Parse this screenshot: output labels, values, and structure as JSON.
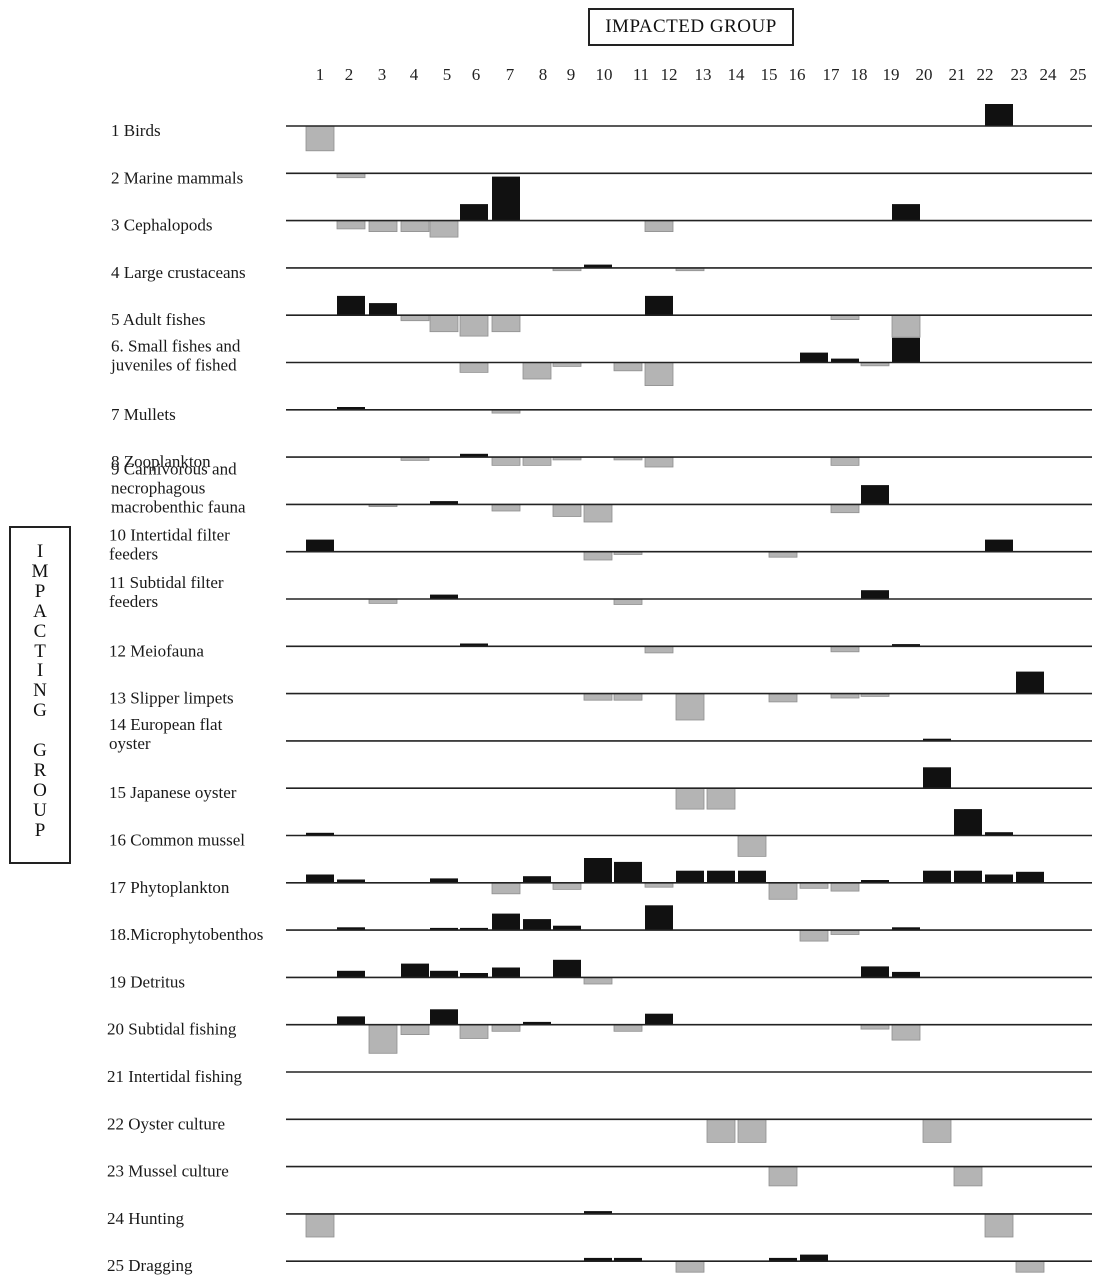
{
  "chart_data": {
    "type": "bar",
    "title": "IMPACTED GROUP",
    "ylabel": "IMPACTING GROUP",
    "columns": [
      "1",
      "2",
      "3",
      "4",
      "5",
      "6",
      "7",
      "8",
      "9",
      "10",
      "11",
      "12",
      "13",
      "14",
      "15",
      "16",
      "17",
      "18",
      "19",
      "20",
      "21",
      "22",
      "23",
      "24",
      "25"
    ],
    "legend": "none",
    "colors": {
      "positive": "#111111",
      "negative": "#b4b4b4",
      "axis": "#222222"
    },
    "rows": [
      {
        "label": [
          "1 Birds"
        ],
        "values": [
          -0.45,
          0,
          0,
          0,
          0,
          0,
          0,
          0,
          0,
          0,
          0,
          0,
          0,
          0,
          0,
          0,
          0,
          0,
          0,
          0,
          0,
          0,
          0.4,
          0,
          0
        ]
      },
      {
        "label": [
          "2 Marine mammals"
        ],
        "values": [
          0,
          -0.08,
          0,
          0,
          0,
          0,
          0,
          0,
          0,
          0,
          0,
          0,
          0,
          0,
          0,
          0,
          0,
          0,
          0,
          0,
          0,
          0,
          0,
          0,
          0
        ]
      },
      {
        "label": [
          "3 Cephalopods"
        ],
        "values": [
          0,
          -0.15,
          -0.2,
          -0.2,
          -0.3,
          0.3,
          0.8,
          0,
          0,
          0,
          0,
          -0.2,
          0,
          0,
          0,
          0,
          0,
          0,
          0,
          0.3,
          0,
          0,
          0,
          0,
          0
        ]
      },
      {
        "label": [
          "4 Large crustaceans"
        ],
        "values": [
          0,
          0,
          0,
          0,
          0,
          0,
          0,
          0,
          -0.05,
          0.06,
          0,
          0,
          -0.05,
          0,
          0,
          0,
          0,
          0,
          0,
          0,
          0,
          0,
          0,
          0,
          0
        ]
      },
      {
        "label": [
          "5 Adult fishes"
        ],
        "values": [
          0,
          0.35,
          0.22,
          -0.1,
          -0.3,
          -0.38,
          -0.3,
          0,
          0,
          0,
          0,
          0.35,
          0,
          0,
          0,
          0,
          0,
          -0.08,
          0,
          -0.4,
          0,
          0,
          0,
          0,
          0
        ]
      },
      {
        "label": [
          "6. Small fishes and",
          "juveniles of fished"
        ],
        "values": [
          0,
          0,
          0,
          0,
          0,
          -0.18,
          0,
          -0.3,
          -0.07,
          0,
          -0.15,
          -0.42,
          0,
          0,
          0,
          0,
          0.18,
          0.07,
          -0.06,
          0.45,
          0,
          0,
          0,
          0,
          0
        ]
      },
      {
        "label": [
          "7 Mullets"
        ],
        "values": [
          0,
          0.05,
          0,
          0,
          0,
          0,
          -0.06,
          0,
          0,
          0,
          0,
          0,
          0,
          0,
          0,
          0,
          0,
          0,
          0,
          0,
          0,
          0,
          0,
          0,
          0
        ]
      },
      {
        "label": [
          "8 Zooplankton"
        ],
        "values": [
          0,
          0,
          0,
          -0.06,
          0,
          0.06,
          -0.15,
          -0.15,
          -0.05,
          0,
          -0.05,
          -0.18,
          0,
          0,
          0,
          0,
          0,
          -0.15,
          0,
          0,
          0,
          0,
          0,
          0,
          0
        ]
      },
      {
        "label": [
          "9 Carnivorous and",
          "necrophagous",
          "macrobenthic fauna"
        ],
        "values": [
          0,
          0,
          -0.04,
          0,
          0.06,
          0,
          -0.12,
          0,
          -0.22,
          -0.32,
          0,
          0,
          0,
          0,
          0,
          0,
          0,
          -0.15,
          0.35,
          0,
          0,
          0,
          0,
          0,
          0
        ]
      },
      {
        "label": [
          "10 Intertidal filter",
          "feeders"
        ],
        "values": [
          0.22,
          0,
          0,
          0,
          0,
          0,
          0,
          0,
          0,
          -0.15,
          -0.05,
          0,
          0,
          0,
          0,
          -0.1,
          0,
          0,
          0,
          0,
          0,
          0,
          0.22,
          0,
          0
        ]
      },
      {
        "label": [
          "11 Subtidal filter",
          "feeders"
        ],
        "values": [
          0,
          0,
          -0.08,
          0,
          0.08,
          0,
          0,
          0,
          0,
          0,
          -0.1,
          0,
          0,
          0,
          0,
          0,
          0,
          0,
          0.16,
          0,
          0,
          0,
          0,
          0,
          0
        ]
      },
      {
        "label": [
          "12 Meiofauna"
        ],
        "values": [
          0,
          0,
          0,
          0,
          0,
          0.05,
          0,
          0,
          0,
          0,
          0,
          -0.12,
          0,
          0,
          0,
          0,
          0,
          -0.1,
          0,
          0.04,
          0,
          0,
          0,
          0,
          0
        ]
      },
      {
        "label": [
          "13 Slipper limpets"
        ],
        "values": [
          0,
          0,
          0,
          0,
          0,
          0,
          0,
          0,
          0,
          -0.12,
          -0.12,
          0,
          -0.48,
          0,
          0,
          -0.15,
          0,
          -0.08,
          -0.05,
          0,
          0,
          0,
          0,
          0.4,
          0
        ]
      },
      {
        "label": [
          "14 European flat",
          "oyster"
        ],
        "values": [
          0,
          0,
          0,
          0,
          0,
          0,
          0,
          0,
          0,
          0,
          0,
          0,
          0,
          0,
          0,
          0,
          0,
          0,
          0,
          0,
          0.04,
          0,
          0,
          0,
          0
        ]
      },
      {
        "label": [
          "15 Japanese oyster"
        ],
        "values": [
          0,
          0,
          0,
          0,
          0,
          0,
          0,
          0,
          0,
          0,
          0,
          0,
          -0.38,
          -0.38,
          0,
          0,
          0,
          0,
          0,
          0,
          0.38,
          0,
          0,
          0,
          0
        ]
      },
      {
        "label": [
          "16 Common mussel"
        ],
        "values": [
          0.05,
          0,
          0,
          0,
          0,
          0,
          0,
          0,
          0,
          0,
          0,
          0,
          0,
          0,
          -0.38,
          0,
          0,
          0,
          0,
          0,
          0,
          0.48,
          0.06,
          0,
          0
        ]
      },
      {
        "label": [
          "17 Phytoplankton"
        ],
        "values": [
          0.15,
          0.06,
          0,
          0,
          0.08,
          0,
          -0.2,
          0.12,
          -0.12,
          0.45,
          0.38,
          -0.08,
          0.22,
          0.22,
          0.22,
          -0.3,
          -0.1,
          -0.15,
          0.05,
          0,
          0.22,
          0.22,
          0.15,
          0.2,
          0
        ]
      },
      {
        "label": [
          "18.Microphytobenthos"
        ],
        "values": [
          0,
          0.05,
          0,
          0,
          0.04,
          0.04,
          0.3,
          0.2,
          0.08,
          0,
          0,
          0.45,
          0,
          0,
          0,
          0,
          -0.2,
          -0.08,
          0,
          0.05,
          0,
          0,
          0,
          0,
          0
        ]
      },
      {
        "label": [
          "19 Detritus"
        ],
        "values": [
          0,
          0.12,
          0,
          0.25,
          0.12,
          0.08,
          0.18,
          0,
          0.32,
          -0.12,
          0,
          0,
          0,
          0,
          0,
          0,
          0,
          0,
          0.2,
          0.1,
          0,
          0,
          0,
          0,
          0
        ]
      },
      {
        "label": [
          "20 Subtidal fishing"
        ],
        "values": [
          0,
          0.15,
          -0.52,
          -0.18,
          0.28,
          -0.25,
          -0.12,
          0.05,
          0,
          0,
          -0.12,
          0.2,
          0,
          0,
          0,
          0,
          0,
          0,
          -0.08,
          -0.28,
          0,
          0,
          0,
          0,
          0
        ]
      },
      {
        "label": [
          "21 Intertidal fishing"
        ],
        "values": [
          0,
          0,
          0,
          0,
          0,
          0,
          0,
          0,
          0,
          0,
          0,
          0,
          0,
          0,
          0,
          0,
          0,
          0,
          0,
          0,
          0,
          0,
          0,
          0,
          0
        ]
      },
      {
        "label": [
          "22 Oyster culture"
        ],
        "values": [
          0,
          0,
          0,
          0,
          0,
          0,
          0,
          0,
          0,
          0,
          0,
          0,
          0,
          -0.42,
          -0.42,
          0,
          0,
          0,
          0,
          0,
          -0.42,
          0,
          0,
          0,
          0
        ]
      },
      {
        "label": [
          "23 Mussel culture"
        ],
        "values": [
          0,
          0,
          0,
          0,
          0,
          0,
          0,
          0,
          0,
          0,
          0,
          0,
          0,
          0,
          0,
          -0.35,
          0,
          0,
          0,
          0,
          0,
          -0.35,
          0,
          0,
          0
        ]
      },
      {
        "label": [
          "24 Hunting"
        ],
        "values": [
          -0.42,
          0,
          0,
          0,
          0,
          0,
          0,
          0,
          0,
          0.05,
          0,
          0,
          0,
          0,
          0,
          0,
          0,
          0,
          0,
          0,
          0,
          0,
          -0.42,
          0,
          0
        ]
      },
      {
        "label": [
          "25 Dragging"
        ],
        "values": [
          0,
          0,
          0,
          0,
          0,
          0,
          0,
          0,
          0,
          0.06,
          0.06,
          0,
          -0.2,
          0,
          0,
          0.06,
          0.12,
          0,
          0,
          0,
          0,
          0,
          0,
          -0.2,
          0
        ]
      }
    ]
  }
}
